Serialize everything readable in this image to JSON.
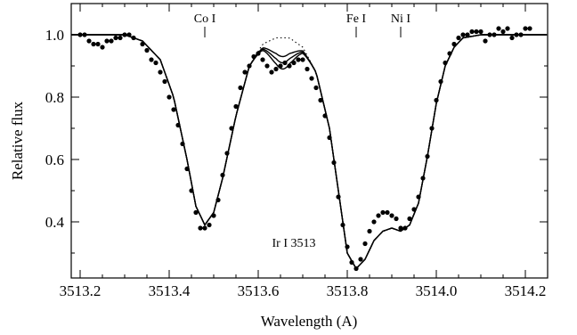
{
  "chart_data": {
    "type": "scatter",
    "xlabel": "Wavelength (A)",
    "ylabel": "Relative flux",
    "xlim": [
      3513.18,
      3514.25
    ],
    "ylim": [
      0.22,
      1.1
    ],
    "x_ticks": [
      {
        "value": 3513.2,
        "label": "3513.2"
      },
      {
        "value": 3513.4,
        "label": "3513.4"
      },
      {
        "value": 3513.6,
        "label": "3513.6"
      },
      {
        "value": 3513.8,
        "label": "3513.8"
      },
      {
        "value": 3514.0,
        "label": "3514.0"
      },
      {
        "value": 3514.2,
        "label": "3514.2"
      }
    ],
    "y_ticks": [
      {
        "value": 0.4,
        "label": "0.4"
      },
      {
        "value": 0.6,
        "label": "0.6"
      },
      {
        "value": 0.8,
        "label": "0.8"
      },
      {
        "value": 1.0,
        "label": "1.0"
      }
    ],
    "line_markers": [
      {
        "label": "Co I",
        "x": 3513.48
      },
      {
        "label": "Fe I",
        "x": 3513.82
      },
      {
        "label": "Ni I",
        "x": 3513.92
      }
    ],
    "annotations": [
      {
        "text": "Ir I 3513",
        "x": 3513.68,
        "y": 0.32
      }
    ],
    "observed_points": [
      [
        3513.2,
        1.0
      ],
      [
        3513.21,
        1.0
      ],
      [
        3513.22,
        0.98
      ],
      [
        3513.23,
        0.97
      ],
      [
        3513.24,
        0.97
      ],
      [
        3513.25,
        0.96
      ],
      [
        3513.26,
        0.98
      ],
      [
        3513.27,
        0.98
      ],
      [
        3513.28,
        0.99
      ],
      [
        3513.29,
        0.99
      ],
      [
        3513.3,
        1.0
      ],
      [
        3513.31,
        1.0
      ],
      [
        3513.32,
        0.99
      ],
      [
        3513.34,
        0.97
      ],
      [
        3513.35,
        0.95
      ],
      [
        3513.36,
        0.92
      ],
      [
        3513.37,
        0.91
      ],
      [
        3513.38,
        0.88
      ],
      [
        3513.39,
        0.85
      ],
      [
        3513.4,
        0.8
      ],
      [
        3513.41,
        0.76
      ],
      [
        3513.42,
        0.71
      ],
      [
        3513.43,
        0.65
      ],
      [
        3513.44,
        0.57
      ],
      [
        3513.45,
        0.5
      ],
      [
        3513.46,
        0.43
      ],
      [
        3513.47,
        0.38
      ],
      [
        3513.48,
        0.38
      ],
      [
        3513.49,
        0.39
      ],
      [
        3513.5,
        0.42
      ],
      [
        3513.51,
        0.47
      ],
      [
        3513.52,
        0.55
      ],
      [
        3513.53,
        0.62
      ],
      [
        3513.54,
        0.7
      ],
      [
        3513.55,
        0.77
      ],
      [
        3513.56,
        0.83
      ],
      [
        3513.57,
        0.88
      ],
      [
        3513.58,
        0.9
      ],
      [
        3513.59,
        0.93
      ],
      [
        3513.6,
        0.94
      ],
      [
        3513.61,
        0.92
      ],
      [
        3513.62,
        0.9
      ],
      [
        3513.63,
        0.88
      ],
      [
        3513.64,
        0.89
      ],
      [
        3513.65,
        0.9
      ],
      [
        3513.66,
        0.91
      ],
      [
        3513.67,
        0.9
      ],
      [
        3513.68,
        0.91
      ],
      [
        3513.69,
        0.92
      ],
      [
        3513.7,
        0.92
      ],
      [
        3513.71,
        0.89
      ],
      [
        3513.72,
        0.86
      ],
      [
        3513.73,
        0.83
      ],
      [
        3513.74,
        0.79
      ],
      [
        3513.75,
        0.74
      ],
      [
        3513.76,
        0.67
      ],
      [
        3513.77,
        0.59
      ],
      [
        3513.78,
        0.48
      ],
      [
        3513.79,
        0.39
      ],
      [
        3513.8,
        0.32
      ],
      [
        3513.81,
        0.27
      ],
      [
        3513.82,
        0.25
      ],
      [
        3513.83,
        0.28
      ],
      [
        3513.84,
        0.33
      ],
      [
        3513.85,
        0.37
      ],
      [
        3513.86,
        0.4
      ],
      [
        3513.87,
        0.42
      ],
      [
        3513.88,
        0.43
      ],
      [
        3513.89,
        0.43
      ],
      [
        3513.9,
        0.42
      ],
      [
        3513.91,
        0.41
      ],
      [
        3513.92,
        0.38
      ],
      [
        3513.93,
        0.38
      ],
      [
        3513.94,
        0.41
      ],
      [
        3513.95,
        0.44
      ],
      [
        3513.96,
        0.48
      ],
      [
        3513.97,
        0.54
      ],
      [
        3513.98,
        0.61
      ],
      [
        3513.99,
        0.7
      ],
      [
        3514.0,
        0.79
      ],
      [
        3514.01,
        0.85
      ],
      [
        3514.02,
        0.91
      ],
      [
        3514.03,
        0.94
      ],
      [
        3514.04,
        0.97
      ],
      [
        3514.05,
        0.99
      ],
      [
        3514.06,
        1.0
      ],
      [
        3514.07,
        1.0
      ],
      [
        3514.08,
        1.01
      ],
      [
        3514.09,
        1.01
      ],
      [
        3514.1,
        1.01
      ],
      [
        3514.11,
        0.98
      ],
      [
        3514.12,
        1.0
      ],
      [
        3514.13,
        1.0
      ],
      [
        3514.14,
        1.02
      ],
      [
        3514.15,
        1.01
      ],
      [
        3514.16,
        1.02
      ],
      [
        3514.17,
        0.99
      ],
      [
        3514.18,
        1.0
      ],
      [
        3514.19,
        1.0
      ],
      [
        3514.2,
        1.02
      ],
      [
        3514.21,
        1.02
      ]
    ],
    "model_no_ir": [
      [
        3513.18,
        1.0
      ],
      [
        3513.3,
        1.0
      ],
      [
        3513.34,
        0.98
      ],
      [
        3513.38,
        0.92
      ],
      [
        3513.41,
        0.8
      ],
      [
        3513.44,
        0.6
      ],
      [
        3513.46,
        0.45
      ],
      [
        3513.48,
        0.39
      ],
      [
        3513.5,
        0.43
      ],
      [
        3513.52,
        0.54
      ],
      [
        3513.55,
        0.74
      ],
      [
        3513.58,
        0.9
      ],
      [
        3513.61,
        0.97
      ],
      [
        3513.64,
        0.99
      ],
      [
        3513.67,
        0.99
      ],
      [
        3513.7,
        0.96
      ],
      [
        3513.73,
        0.88
      ],
      [
        3513.76,
        0.7
      ],
      [
        3513.78,
        0.5
      ],
      [
        3513.8,
        0.3
      ],
      [
        3513.82,
        0.25
      ],
      [
        3513.84,
        0.28
      ],
      [
        3513.86,
        0.34
      ],
      [
        3513.88,
        0.37
      ],
      [
        3513.9,
        0.38
      ],
      [
        3513.92,
        0.37
      ],
      [
        3513.94,
        0.39
      ],
      [
        3513.96,
        0.46
      ],
      [
        3513.98,
        0.61
      ],
      [
        3514.0,
        0.78
      ],
      [
        3514.02,
        0.9
      ],
      [
        3514.04,
        0.96
      ],
      [
        3514.06,
        0.99
      ],
      [
        3514.1,
        1.0
      ],
      [
        3514.25,
        1.0
      ]
    ],
    "models_with_ir": [
      {
        "ir_depth": 0.06
      },
      {
        "ir_depth": 0.08
      },
      {
        "ir_depth": 0.1
      }
    ]
  }
}
